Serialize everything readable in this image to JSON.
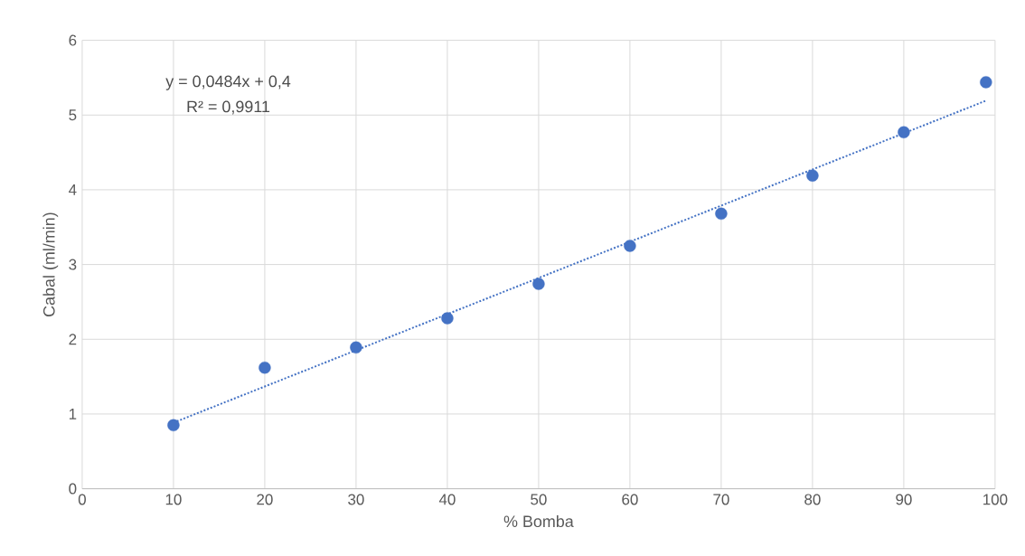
{
  "chart_data": {
    "type": "scatter",
    "xlabel": "% Bomba",
    "ylabel": "Cabal (ml/min)",
    "x": [
      10,
      20,
      30,
      40,
      50,
      60,
      70,
      80,
      90,
      99
    ],
    "series": [
      {
        "color": "#4472c4",
        "values": [
          0.85,
          1.62,
          1.89,
          2.28,
          2.74,
          3.25,
          3.68,
          4.19,
          4.77,
          5.44
        ],
        "marker": "circle"
      },
      {
        "type": "line",
        "color": "#4472c4",
        "x": [
          10,
          99
        ],
        "values": [
          0.884,
          5.192
        ],
        "line_style": "dotted",
        "marker": "none"
      }
    ],
    "xlim": [
      0,
      100
    ],
    "ylim": [
      0,
      6
    ],
    "xticks": [
      0,
      10,
      20,
      30,
      40,
      50,
      60,
      70,
      80,
      90,
      100
    ],
    "yticks": [
      0,
      1,
      2,
      3,
      4,
      5,
      6
    ],
    "grid": true,
    "annotations": [
      "y = 0,0484x + 0,4",
      "R² = 0,9911"
    ]
  }
}
